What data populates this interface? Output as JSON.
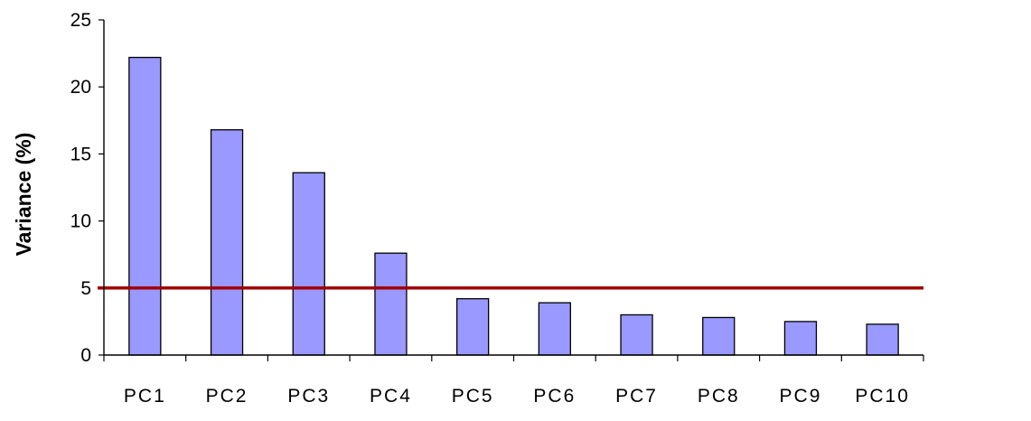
{
  "chart_data": {
    "type": "bar",
    "title": "",
    "xlabel": "",
    "ylabel": "Variance (%)",
    "categories": [
      "PC1",
      "PC2",
      "PC3",
      "PC4",
      "PC5",
      "PC6",
      "PC7",
      "PC8",
      "PC9",
      "PC10"
    ],
    "values": [
      22.2,
      16.8,
      13.6,
      7.6,
      4.2,
      3.9,
      3.0,
      2.8,
      2.5,
      2.3
    ],
    "ylim": [
      0,
      25
    ],
    "yticks": [
      0,
      5,
      10,
      15,
      20,
      25
    ],
    "grid": false,
    "legend": "none",
    "threshold_line": {
      "value": 5,
      "color": "#a00000"
    },
    "bar_color": "#9999ff",
    "bar_edge_color": "#000000"
  }
}
